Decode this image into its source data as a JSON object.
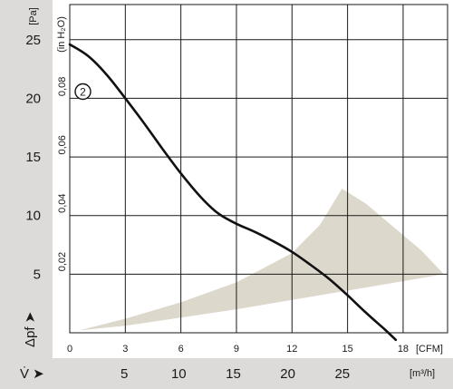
{
  "colors": {
    "band": "#dddbd9",
    "grid": "#1a1a1a",
    "curve": "#111111",
    "operating_area": "#ddd8cc",
    "background": "#ffffff"
  },
  "units": {
    "pressure_pa": "[Pa]",
    "pressure_inh2o": "(in H₂O)",
    "cfm": "[CFM]",
    "m3h": "[m³/h]"
  },
  "symbols": {
    "pressure": "Δpf ➤",
    "flow": "V̇ ➤"
  },
  "chart_data": {
    "type": "line",
    "grid": true,
    "x_axis_cfm": {
      "label": "[CFM]",
      "range": [
        0,
        20.4
      ],
      "ticks": [
        "0",
        "3",
        "6",
        "9",
        "12",
        "15",
        "18"
      ]
    },
    "x_axis_m3h": {
      "label": "[m³/h]",
      "ticks": [
        "5",
        "10",
        "15",
        "20",
        "25"
      ]
    },
    "y_axis_pa": {
      "label": "[Pa]",
      "range": [
        0,
        28
      ],
      "ticks": [
        "5",
        "10",
        "15",
        "20",
        "25"
      ]
    },
    "y_axis_inh2o": {
      "label": "(in H₂O)",
      "ticks": [
        "0,02",
        "0,04",
        "0,06",
        "0,08"
      ]
    },
    "series": [
      {
        "name": "2",
        "x": [
          0,
          1,
          2,
          3,
          4,
          5,
          6,
          7,
          8,
          9,
          10,
          11,
          12,
          13,
          14,
          15,
          16,
          17,
          17.6
        ],
        "y": [
          24.6,
          23.6,
          22.0,
          20.0,
          17.9,
          15.7,
          13.6,
          11.7,
          10.2,
          9.3,
          8.6,
          7.8,
          6.9,
          5.8,
          4.6,
          3.2,
          1.7,
          0.3,
          -0.6
        ]
      }
    ],
    "operating_area": {
      "lower_boundary": {
        "x": [
          0.5,
          3,
          6,
          9,
          12,
          15,
          18,
          20.2
        ],
        "y": [
          0.2,
          0.6,
          1.3,
          2.0,
          2.8,
          3.6,
          4.4,
          5.0
        ]
      },
      "upper_boundary": {
        "x": [
          0.5,
          3,
          6,
          9,
          12,
          13.5,
          14.7,
          16.0,
          17.5,
          19.0,
          20.2
        ],
        "y": [
          0.2,
          1.2,
          2.6,
          4.3,
          6.8,
          9.2,
          12.3,
          11.0,
          9.0,
          7.0,
          5.0
        ]
      }
    }
  }
}
